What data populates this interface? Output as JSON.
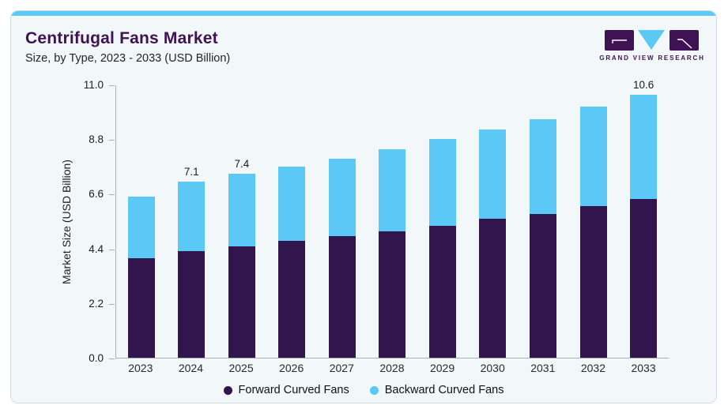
{
  "header": {
    "title": "Centrifugal Fans Market",
    "subtitle": "Size, by Type, 2023 - 2033 (USD Billion)",
    "logo_text": "GRAND VIEW RESEARCH"
  },
  "colors": {
    "accent_blue": "#5BC8F5",
    "dark_purple": "#33154E",
    "title_purple": "#3E1253",
    "card_background": "#F2F7FA",
    "axis_gray": "#A8B1B8"
  },
  "chart_data": {
    "type": "bar",
    "stacked": true,
    "title": "Centrifugal Fans Market",
    "subtitle": "Size, by Type, 2023 - 2033 (USD Billion)",
    "categories": [
      "2023",
      "2024",
      "2025",
      "2026",
      "2027",
      "2028",
      "2029",
      "2030",
      "2031",
      "2032",
      "2033"
    ],
    "series": [
      {
        "name": "Forward Curved Fans",
        "color": "#33154E",
        "values": [
          4.0,
          4.3,
          4.5,
          4.7,
          4.9,
          5.1,
          5.3,
          5.6,
          5.8,
          6.1,
          6.4
        ]
      },
      {
        "name": "Backward Curved Fans",
        "color": "#5BC8F5",
        "values": [
          2.5,
          2.8,
          2.9,
          3.0,
          3.1,
          3.3,
          3.5,
          3.6,
          3.8,
          4.0,
          4.2
        ]
      }
    ],
    "totals": [
      6.5,
      7.1,
      7.4,
      7.7,
      8.0,
      8.4,
      8.8,
      9.2,
      9.6,
      10.1,
      10.6
    ],
    "bar_total_labels": [
      "",
      "7.1",
      "7.4",
      "",
      "",
      "",
      "",
      "",
      "",
      "",
      "10.6"
    ],
    "ylabel": "Market Size (USD Billion)",
    "yticks": [
      0.0,
      2.2,
      4.4,
      6.6,
      8.8,
      11.0
    ],
    "ytick_labels": [
      "0.0",
      "2.2",
      "4.4",
      "6.6",
      "8.8",
      "11.0"
    ],
    "ylim": [
      0,
      11.0
    ],
    "grid": false,
    "legend_position": "bottom"
  }
}
